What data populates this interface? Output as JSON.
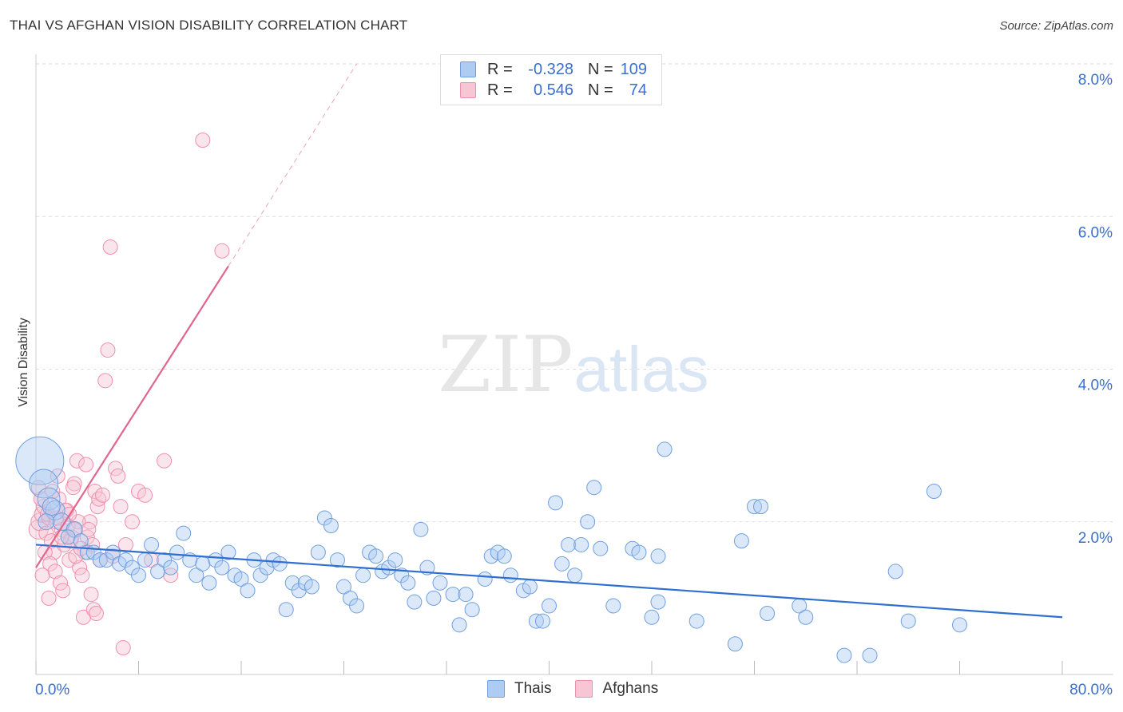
{
  "title": "THAI VS AFGHAN VISION DISABILITY CORRELATION CHART",
  "source": "Source: ZipAtlas.com",
  "watermark": {
    "zip": "ZIP",
    "atlas": "atlas"
  },
  "colors": {
    "thai": "#6f9fe0",
    "thai_fill": "#aecbf1",
    "afghan": "#ef8fae",
    "afghan_fill": "#f7c6d5",
    "thai_line": "#2f6fd0",
    "afghan_line": "#e0668f",
    "axis_label": "#3a6fcf"
  },
  "legend": {
    "rows": [
      {
        "r_label": "R =",
        "r_value": "-0.328",
        "n_label": "N =",
        "n_value": "109"
      },
      {
        "r_label": "R =",
        "r_value": "0.546",
        "n_label": "N =",
        "n_value": "74"
      }
    ]
  },
  "bottom_legend": [
    {
      "label": "Thais"
    },
    {
      "label": "Afghans"
    }
  ],
  "chart_data": {
    "type": "scatter",
    "ylabel": "Vision Disability",
    "xlim": [
      0,
      80
    ],
    "ylim": [
      0,
      8
    ],
    "x_tick_labels": [
      "0.0%",
      "80.0%"
    ],
    "y_tick_labels": [
      "2.0%",
      "4.0%",
      "6.0%",
      "8.0%"
    ],
    "y_ticks": [
      2,
      4,
      6,
      8
    ],
    "grid": true,
    "series": [
      {
        "name": "Thais",
        "points": [
          [
            0.3,
            2.8,
            30
          ],
          [
            0.6,
            2.5,
            18
          ],
          [
            1.0,
            2.3,
            14
          ],
          [
            1.5,
            2.15,
            12
          ],
          [
            2.0,
            2.0,
            11
          ],
          [
            3.0,
            1.9,
            10
          ],
          [
            1.2,
            2.2,
            11
          ],
          [
            0.8,
            2.0,
            10
          ],
          [
            2.5,
            1.8,
            9
          ],
          [
            3.5,
            1.75,
            9
          ],
          [
            4.0,
            1.6,
            9
          ],
          [
            4.5,
            1.6,
            9
          ],
          [
            5.0,
            1.5,
            9
          ],
          [
            5.5,
            1.5,
            9
          ],
          [
            6.0,
            1.6,
            9
          ],
          [
            6.5,
            1.45,
            9
          ],
          [
            7.0,
            1.5,
            9
          ],
          [
            7.5,
            1.4,
            9
          ],
          [
            8.0,
            1.3,
            9
          ],
          [
            8.5,
            1.5,
            9
          ],
          [
            9.0,
            1.7,
            9
          ],
          [
            9.5,
            1.35,
            9
          ],
          [
            10.0,
            1.5,
            9
          ],
          [
            10.5,
            1.4,
            9
          ],
          [
            11.0,
            1.6,
            9
          ],
          [
            11.5,
            1.85,
            9
          ],
          [
            12.0,
            1.5,
            9
          ],
          [
            12.5,
            1.3,
            9
          ],
          [
            13.0,
            1.45,
            9
          ],
          [
            13.5,
            1.2,
            9
          ],
          [
            14.0,
            1.5,
            9
          ],
          [
            14.5,
            1.4,
            9
          ],
          [
            15.0,
            1.6,
            9
          ],
          [
            15.5,
            1.3,
            9
          ],
          [
            16.0,
            1.25,
            9
          ],
          [
            16.5,
            1.1,
            9
          ],
          [
            17.0,
            1.5,
            9
          ],
          [
            17.5,
            1.3,
            9
          ],
          [
            18.0,
            1.4,
            9
          ],
          [
            18.5,
            1.5,
            9
          ],
          [
            19.0,
            1.45,
            9
          ],
          [
            19.5,
            0.85,
            9
          ],
          [
            20.0,
            1.2,
            9
          ],
          [
            20.5,
            1.1,
            9
          ],
          [
            21.0,
            1.2,
            9
          ],
          [
            21.5,
            1.15,
            9
          ],
          [
            22.0,
            1.6,
            9
          ],
          [
            22.5,
            2.05,
            9
          ],
          [
            23.0,
            1.95,
            9
          ],
          [
            23.5,
            1.5,
            9
          ],
          [
            24.0,
            1.15,
            9
          ],
          [
            24.5,
            1.0,
            9
          ],
          [
            25.0,
            0.9,
            9
          ],
          [
            25.5,
            1.3,
            9
          ],
          [
            26.0,
            1.6,
            9
          ],
          [
            26.5,
            1.55,
            9
          ],
          [
            27.0,
            1.35,
            9
          ],
          [
            27.5,
            1.4,
            9
          ],
          [
            28.0,
            1.5,
            9
          ],
          [
            28.5,
            1.3,
            9
          ],
          [
            29.0,
            1.2,
            9
          ],
          [
            29.5,
            0.95,
            9
          ],
          [
            30.0,
            1.9,
            9
          ],
          [
            30.5,
            1.4,
            9
          ],
          [
            31.0,
            1.0,
            9
          ],
          [
            31.5,
            1.2,
            9
          ],
          [
            32.5,
            1.05,
            9
          ],
          [
            33.0,
            0.65,
            9
          ],
          [
            33.5,
            1.05,
            9
          ],
          [
            34.0,
            0.85,
            9
          ],
          [
            35.0,
            1.25,
            9
          ],
          [
            35.5,
            1.55,
            9
          ],
          [
            36.0,
            1.6,
            9
          ],
          [
            36.5,
            1.55,
            9
          ],
          [
            37.0,
            1.3,
            9
          ],
          [
            38.0,
            1.1,
            9
          ],
          [
            38.5,
            1.15,
            9
          ],
          [
            39.0,
            0.7,
            9
          ],
          [
            39.5,
            0.7,
            9
          ],
          [
            40.0,
            0.9,
            9
          ],
          [
            40.5,
            2.25,
            9
          ],
          [
            41.0,
            1.45,
            9
          ],
          [
            41.5,
            1.7,
            9
          ],
          [
            42.0,
            1.3,
            9
          ],
          [
            42.5,
            1.7,
            9
          ],
          [
            43.0,
            2.0,
            9
          ],
          [
            43.5,
            2.45,
            9
          ],
          [
            44.0,
            1.65,
            9
          ],
          [
            45.0,
            0.9,
            9
          ],
          [
            46.5,
            1.65,
            9
          ],
          [
            47.0,
            1.6,
            9
          ],
          [
            48.0,
            0.75,
            9
          ],
          [
            48.5,
            0.95,
            9
          ],
          [
            48.5,
            1.55,
            9
          ],
          [
            49.0,
            2.95,
            9
          ],
          [
            51.5,
            0.7,
            9
          ],
          [
            54.5,
            0.4,
            9
          ],
          [
            55.0,
            1.75,
            9
          ],
          [
            56.0,
            2.2,
            9
          ],
          [
            56.5,
            2.2,
            9
          ],
          [
            59.5,
            0.9,
            9
          ],
          [
            60.0,
            0.75,
            9
          ],
          [
            63.0,
            0.25,
            9
          ],
          [
            65.0,
            0.25,
            9
          ],
          [
            67.0,
            1.35,
            9
          ],
          [
            68.0,
            0.7,
            9
          ],
          [
            70.0,
            2.4,
            9
          ],
          [
            72.0,
            0.65,
            9
          ],
          [
            57.0,
            0.8,
            9
          ]
        ]
      },
      {
        "name": "Afghans",
        "points": [
          [
            0.2,
            1.9,
            12
          ],
          [
            0.3,
            2.0,
            11
          ],
          [
            0.5,
            2.1,
            10
          ],
          [
            0.6,
            2.2,
            9
          ],
          [
            0.8,
            1.85,
            9
          ],
          [
            1.0,
            2.05,
            9
          ],
          [
            1.2,
            1.75,
            9
          ],
          [
            1.4,
            1.6,
            9
          ],
          [
            1.6,
            2.0,
            9
          ],
          [
            1.8,
            2.3,
            9
          ],
          [
            2.0,
            1.9,
            9
          ],
          [
            2.2,
            1.7,
            9
          ],
          [
            2.4,
            2.15,
            9
          ],
          [
            2.6,
            1.5,
            9
          ],
          [
            2.8,
            1.8,
            9
          ],
          [
            3.0,
            2.5,
            9
          ],
          [
            3.2,
            2.8,
            9
          ],
          [
            3.4,
            1.4,
            9
          ],
          [
            3.6,
            1.3,
            9
          ],
          [
            3.8,
            1.6,
            9
          ],
          [
            4.0,
            1.8,
            9
          ],
          [
            4.2,
            2.0,
            9
          ],
          [
            4.4,
            1.7,
            9
          ],
          [
            4.6,
            2.4,
            9
          ],
          [
            4.8,
            2.2,
            9
          ],
          [
            5.0,
            1.5,
            9
          ],
          [
            0.4,
            2.3,
            9
          ],
          [
            0.7,
            1.6,
            9
          ],
          [
            0.9,
            2.1,
            9
          ],
          [
            1.1,
            1.45,
            9
          ],
          [
            1.3,
            2.4,
            9
          ],
          [
            1.5,
            1.35,
            9
          ],
          [
            1.7,
            2.6,
            9
          ],
          [
            1.9,
            1.2,
            9
          ],
          [
            2.1,
            1.1,
            9
          ],
          [
            2.3,
            2.15,
            9
          ],
          [
            2.5,
            1.95,
            9
          ],
          [
            2.7,
            1.75,
            9
          ],
          [
            2.9,
            2.45,
            9
          ],
          [
            3.1,
            1.55,
            9
          ],
          [
            3.3,
            2.0,
            9
          ],
          [
            3.5,
            1.65,
            9
          ],
          [
            3.7,
            0.75,
            9
          ],
          [
            3.9,
            2.75,
            9
          ],
          [
            4.1,
            1.9,
            9
          ],
          [
            4.3,
            1.05,
            9
          ],
          [
            4.5,
            0.85,
            9
          ],
          [
            4.7,
            0.8,
            9
          ],
          [
            4.9,
            2.3,
            9
          ],
          [
            5.2,
            2.35,
            9
          ],
          [
            5.4,
            3.85,
            9
          ],
          [
            5.6,
            4.25,
            9
          ],
          [
            5.8,
            5.6,
            9
          ],
          [
            6.0,
            1.55,
            9
          ],
          [
            6.2,
            2.7,
            9
          ],
          [
            6.4,
            2.6,
            9
          ],
          [
            6.6,
            2.2,
            9
          ],
          [
            6.8,
            0.35,
            9
          ],
          [
            7.0,
            1.7,
            9
          ],
          [
            7.5,
            2.0,
            9
          ],
          [
            8.0,
            2.4,
            9
          ],
          [
            8.5,
            2.35,
            9
          ],
          [
            9.0,
            1.5,
            9
          ],
          [
            10.0,
            2.8,
            9
          ],
          [
            10.5,
            1.3,
            9
          ],
          [
            13.0,
            7.0,
            9
          ],
          [
            14.5,
            5.55,
            9
          ],
          [
            0.2,
            2.45,
            9
          ],
          [
            0.5,
            1.3,
            9
          ],
          [
            1.0,
            1.0,
            9
          ],
          [
            1.6,
            2.05,
            9
          ],
          [
            2.0,
            1.8,
            9
          ],
          [
            2.6,
            2.1,
            9
          ],
          [
            3.0,
            1.9,
            9
          ]
        ]
      }
    ],
    "trendlines": [
      {
        "series": "Thais",
        "x": [
          0,
          80
        ],
        "y": [
          1.7,
          0.75
        ],
        "style": "solid"
      },
      {
        "series": "Afghans",
        "x": [
          0,
          15
        ],
        "y": [
          1.4,
          5.35
        ],
        "style": "solid"
      },
      {
        "series": "Afghans",
        "x": [
          15,
          25
        ],
        "y": [
          5.35,
          8.0
        ],
        "style": "dashed"
      }
    ]
  }
}
